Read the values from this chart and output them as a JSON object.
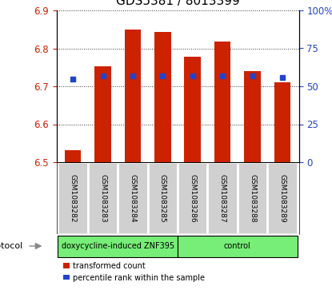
{
  "title": "GDS5381 / 8013399",
  "samples": [
    "GSM1083282",
    "GSM1083283",
    "GSM1083284",
    "GSM1083285",
    "GSM1083286",
    "GSM1083287",
    "GSM1083288",
    "GSM1083289"
  ],
  "red_values": [
    6.532,
    6.752,
    6.85,
    6.843,
    6.778,
    6.818,
    6.74,
    6.71
  ],
  "blue_percentiles": [
    55,
    57,
    57,
    57,
    57,
    57,
    57,
    56
  ],
  "ylim_left": [
    6.5,
    6.9
  ],
  "ylim_right": [
    0,
    100
  ],
  "yticks_left": [
    6.5,
    6.6,
    6.7,
    6.8,
    6.9
  ],
  "yticks_right": [
    0,
    25,
    50,
    75,
    100
  ],
  "yticklabels_right": [
    "0",
    "25",
    "50",
    "75",
    "100%"
  ],
  "group1_label": "doxycycline-induced ZNF395",
  "group2_label": "control",
  "group1_count": 4,
  "group2_count": 4,
  "group_color": "#77ee77",
  "protocol_label": "protocol",
  "bar_color": "#cc2200",
  "blue_color": "#2244cc",
  "base_value": 6.5,
  "bar_width": 0.55,
  "grid_color": "#000000",
  "bg_color": "#ffffff",
  "cell_color": "#d0d0d0",
  "cell_edge_color": "#ffffff",
  "label_color_red": "#cc2200",
  "label_color_blue": "#2244cc",
  "legend_red": "transformed count",
  "legend_blue": "percentile rank within the sample",
  "title_fontsize": 11,
  "tick_fontsize": 8.5,
  "sample_fontsize": 6.5,
  "protocol_fontsize": 8,
  "group_fontsize": 7,
  "legend_fontsize": 7
}
